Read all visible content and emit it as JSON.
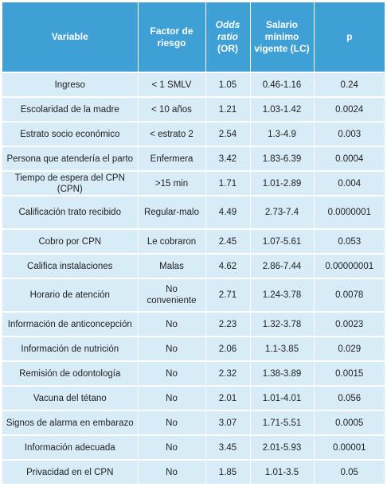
{
  "table": {
    "headers": {
      "variable": "Variable",
      "factor": "Factor de riesgo",
      "odds_italic": "Odds ratio",
      "odds_rest": " (OR)",
      "salario": "Salario mínimo vigente (LC)",
      "p": "p"
    },
    "rows": [
      {
        "variable": "Ingreso",
        "factor": "< 1 SMLV",
        "or": "1.05",
        "lc": "0.46-1.16",
        "p": "0.24"
      },
      {
        "variable": "Escolaridad de la madre",
        "factor": "< 10 años",
        "or": "1.21",
        "lc": "1.03-1.42",
        "p": "0.0024"
      },
      {
        "variable": "Estrato socio económico",
        "factor": "< estrato 2",
        "or": "2.54",
        "lc": "1.3-4.9",
        "p": "0.003"
      },
      {
        "variable": "Persona que atendería el parto",
        "factor": "Enfermera",
        "or": "3.42",
        "lc": "1.83-6.39",
        "p": "0.0004"
      },
      {
        "variable": "Tiempo de espera del CPN (CPN)",
        "factor": ">15 min",
        "or": "1.71",
        "lc": "1.01-2.89",
        "p": "0.004"
      },
      {
        "variable": "Calificación trato recibido",
        "factor": "Regular-malo",
        "or": "4.49",
        "lc": "2.73-7.4",
        "p": "0.0000001"
      },
      {
        "variable": "Cobro por CPN",
        "factor": "Le cobraron",
        "or": "2.45",
        "lc": "1.07-5.61",
        "p": "0.053"
      },
      {
        "variable": "Califica instalaciones",
        "factor": "Malas",
        "or": "4.62",
        "lc": "2.86-7.44",
        "p": "0.00000001"
      },
      {
        "variable": "Horario de atención",
        "factor": "No conveniente",
        "or": "2.71",
        "lc": "1.24-3.78",
        "p": "0.0078"
      },
      {
        "variable": "Información de anticoncepción",
        "factor": "No",
        "or": "2.23",
        "lc": "1.32-3.78",
        "p": "0.0023"
      },
      {
        "variable": "Información de nutrición",
        "factor": "No",
        "or": "2.06",
        "lc": "1.1-3.85",
        "p": "0.029"
      },
      {
        "variable": "Remisión de odontología",
        "factor": "No",
        "or": "2.32",
        "lc": "1.38-3.89",
        "p": "0.0015"
      },
      {
        "variable": "Vacuna del tétano",
        "factor": "No",
        "or": "2.01",
        "lc": "1.01-4.01",
        "p": "0.056"
      },
      {
        "variable": "Signos de alarma en embarazo",
        "factor": "No",
        "or": "3.07",
        "lc": "1.71-5.51",
        "p": "0.0005"
      },
      {
        "variable": "Información adecuada",
        "factor": "No",
        "or": "3.45",
        "lc": "2.01-5.93",
        "p": "0.00001"
      },
      {
        "variable": "Privacidad en el CPN",
        "factor": "No",
        "or": "1.85",
        "lc": "1.01-3.5",
        "p": "0.05"
      }
    ]
  },
  "colors": {
    "header_bg": "#3fa0d6",
    "row_bg": "#d8ecf8",
    "header_text": "#ffffff"
  }
}
